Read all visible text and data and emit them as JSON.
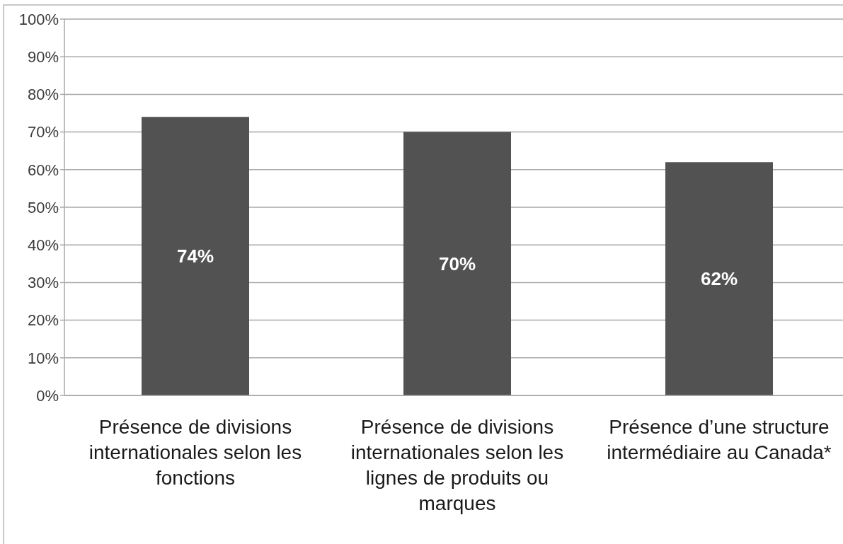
{
  "chart_data": {
    "type": "bar",
    "categories": [
      "Présence de divisions internationales selon les fonctions",
      "Présence de divisions internationales selon les lignes de produits ou marques",
      "Présence d’une structure intermédiaire au Canada*"
    ],
    "values": [
      74,
      70,
      62
    ],
    "color": "#525252",
    "value_labels": [
      "74%",
      "70%",
      "62%"
    ],
    "ylim": [
      0,
      100
    ],
    "yticks": [
      {
        "value": 0,
        "label": "0%"
      },
      {
        "value": 10,
        "label": "10%"
      },
      {
        "value": 20,
        "label": "20%"
      },
      {
        "value": 30,
        "label": "30%"
      },
      {
        "value": 40,
        "label": "40%"
      },
      {
        "value": 50,
        "label": "50%"
      },
      {
        "value": 60,
        "label": "60%"
      },
      {
        "value": 70,
        "label": "70%"
      },
      {
        "value": 80,
        "label": "80%"
      },
      {
        "value": 90,
        "label": "90%"
      },
      {
        "value": 100,
        "label": "100%"
      }
    ],
    "grid": "y",
    "legend": false
  }
}
